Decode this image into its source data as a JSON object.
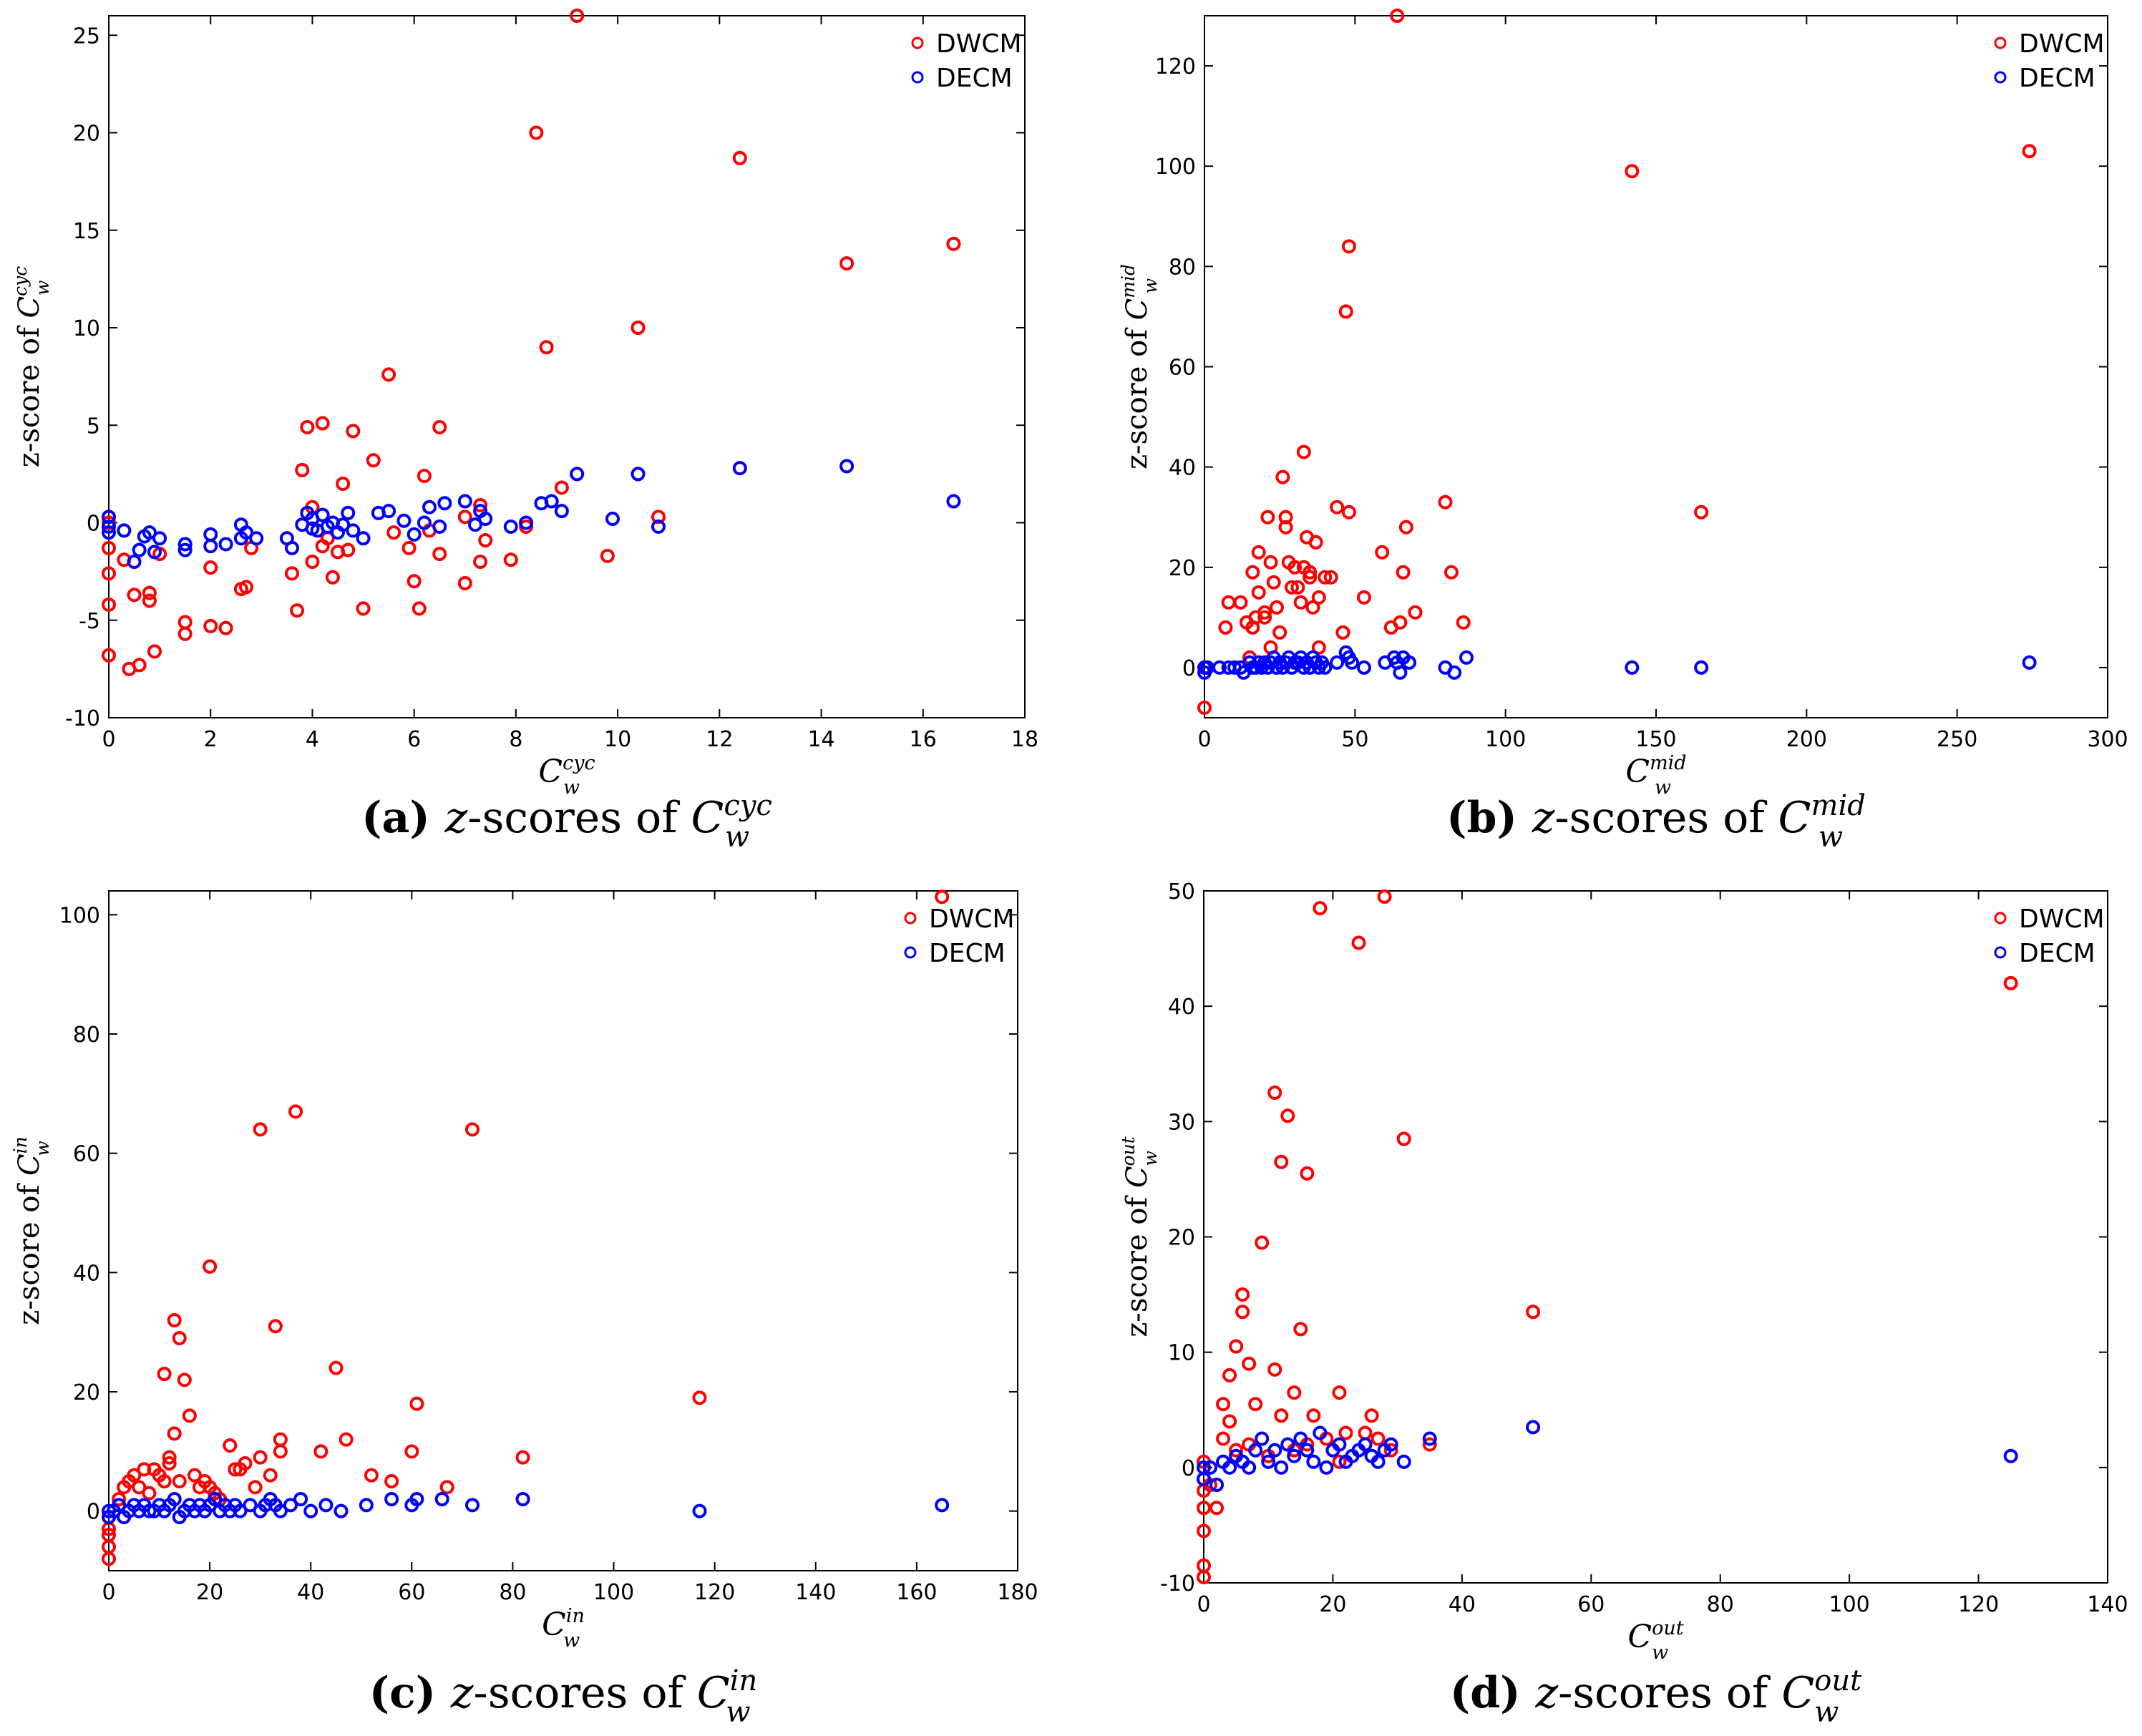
{
  "colors": {
    "dwcm": "#ff0000",
    "decm": "#0000ff"
  },
  "chart_data": [
    {
      "id": "a",
      "type": "scatter",
      "caption": {
        "letter": "(a)",
        "z": "z",
        "rest": "-scores of ",
        "var": "C",
        "sub": "w",
        "sup": "cyc"
      },
      "xlabel": {
        "var": "C",
        "sub": "w",
        "sup": "cyc"
      },
      "ylabel": {
        "text": "z-score of ",
        "var": "C",
        "sub": "w",
        "sup": "cyc"
      },
      "xlim": [
        0,
        18
      ],
      "ylim": [
        -10,
        26
      ],
      "xticks": [
        0,
        2,
        4,
        6,
        8,
        10,
        12,
        14,
        16,
        18
      ],
      "yticks": [
        -10,
        -5,
        0,
        5,
        10,
        15,
        20,
        25
      ],
      "legend": [
        "DWCM",
        "DECM"
      ],
      "series": [
        {
          "name": "DWCM",
          "x": [
            0,
            0,
            0,
            0,
            0,
            0.3,
            0.4,
            0.5,
            0.6,
            0.8,
            0.8,
            0.9,
            1.0,
            1.5,
            1.5,
            2.0,
            2.0,
            2.3,
            2.6,
            2.7,
            2.8,
            3.6,
            3.7,
            3.8,
            3.9,
            4.0,
            4.0,
            4.2,
            4.2,
            4.3,
            4.4,
            4.5,
            4.6,
            4.7,
            4.8,
            5.0,
            5.2,
            5.5,
            5.6,
            5.9,
            6.0,
            6.1,
            6.2,
            6.3,
            6.5,
            6.5,
            7.0,
            7.0,
            7.3,
            7.3,
            7.4,
            7.9,
            8.2,
            8.4,
            8.6,
            8.9,
            9.2,
            9.8,
            10.4,
            10.8,
            12.4,
            14.5,
            16.6
          ],
          "y": [
            -6.8,
            -4.2,
            -2.6,
            -1.3,
            0,
            -1.9,
            -7.5,
            -3.7,
            -7.3,
            -4.0,
            -3.6,
            -6.6,
            -1.6,
            -5.1,
            -5.7,
            -5.3,
            -2.3,
            -5.4,
            -3.4,
            -3.3,
            -1.3,
            -2.6,
            -4.5,
            2.7,
            4.9,
            0.8,
            -2.0,
            -1.2,
            5.1,
            -0.8,
            -2.8,
            -1.5,
            2.0,
            -1.4,
            4.7,
            -4.4,
            3.2,
            7.6,
            -0.5,
            -1.3,
            -3.0,
            -4.4,
            2.4,
            -0.4,
            4.9,
            -1.6,
            0.3,
            -3.1,
            0.9,
            -2.0,
            -0.9,
            -1.9,
            -0.2,
            20.0,
            9.0,
            1.8,
            26.0,
            -1.7,
            10.0,
            0.3,
            18.7,
            13.3,
            14.3
          ]
        },
        {
          "name": "DECM",
          "x": [
            0,
            0,
            0,
            0.3,
            0.5,
            0.6,
            0.7,
            0.8,
            0.9,
            1.0,
            1.5,
            1.5,
            2.0,
            2.0,
            2.3,
            2.6,
            2.6,
            2.7,
            2.9,
            3.5,
            3.6,
            3.8,
            3.9,
            4.0,
            4.0,
            4.1,
            4.2,
            4.3,
            4.4,
            4.5,
            4.6,
            4.7,
            4.8,
            5.0,
            5.3,
            5.5,
            5.8,
            6.0,
            6.2,
            6.3,
            6.5,
            6.6,
            7.0,
            7.2,
            7.3,
            7.4,
            7.9,
            8.2,
            8.5,
            8.7,
            8.9,
            9.2,
            9.9,
            10.4,
            10.8,
            12.4,
            14.5,
            16.6
          ],
          "y": [
            -0.2,
            -0.5,
            0.3,
            -0.4,
            -2.0,
            -1.4,
            -0.7,
            -0.5,
            -1.5,
            -0.8,
            -1.1,
            -1.4,
            -1.2,
            -0.6,
            -1.1,
            -0.8,
            -0.1,
            -0.5,
            -0.8,
            -0.8,
            -1.3,
            -0.1,
            0.5,
            -0.3,
            0.2,
            -0.4,
            0.4,
            -0.2,
            0.0,
            -0.5,
            -0.1,
            0.5,
            -0.4,
            -0.8,
            0.5,
            0.6,
            0.1,
            -0.6,
            0.0,
            0.8,
            -0.2,
            1.0,
            1.1,
            -0.1,
            0.6,
            0.2,
            -0.2,
            0.0,
            1.0,
            1.1,
            0.6,
            2.5,
            0.2,
            2.5,
            -0.2,
            2.8,
            2.9,
            1.1
          ]
        }
      ]
    },
    {
      "id": "b",
      "type": "scatter",
      "caption": {
        "letter": "(b)",
        "z": "z",
        "rest": "-scores of ",
        "var": "C",
        "sub": "w",
        "sup": "mid"
      },
      "xlabel": {
        "var": "C",
        "sub": "w",
        "sup": "mid"
      },
      "ylabel": {
        "text": "z-score of ",
        "var": "C",
        "sub": "w",
        "sup": "mid"
      },
      "xlim": [
        0,
        300
      ],
      "ylim": [
        -10,
        130
      ],
      "xticks": [
        0,
        50,
        100,
        150,
        200,
        250,
        300
      ],
      "yticks": [
        0,
        20,
        40,
        60,
        80,
        100,
        120
      ],
      "legend": [
        "DWCM",
        "DECM"
      ],
      "series": [
        {
          "name": "DWCM",
          "x": [
            0,
            7,
            8,
            12,
            14,
            15,
            16,
            16,
            17,
            18,
            18,
            20,
            20,
            21,
            22,
            22,
            23,
            24,
            25,
            26,
            27,
            27,
            28,
            29,
            30,
            31,
            32,
            33,
            33,
            34,
            35,
            35,
            36,
            37,
            38,
            38,
            40,
            42,
            44,
            46,
            47,
            48,
            48,
            53,
            59,
            62,
            64,
            65,
            66,
            67,
            70,
            80,
            82,
            86,
            142,
            165,
            274
          ],
          "y": [
            -8,
            8,
            13,
            13,
            9,
            2,
            19,
            8,
            10,
            23,
            15,
            10,
            11,
            30,
            21,
            4,
            17,
            12,
            7,
            38,
            30,
            28,
            21,
            16,
            20,
            16,
            13,
            43,
            20,
            26,
            18,
            19,
            12,
            25,
            14,
            4,
            18,
            18,
            32,
            7,
            71,
            84,
            31,
            14,
            23,
            8,
            130,
            9,
            19,
            28,
            11,
            33,
            19,
            9,
            99,
            31,
            103
          ]
        },
        {
          "name": "DECM",
          "x": [
            0,
            0,
            1,
            5,
            8,
            10,
            12,
            13,
            15,
            16,
            17,
            18,
            19,
            20,
            21,
            22,
            23,
            24,
            25,
            26,
            27,
            28,
            29,
            30,
            31,
            32,
            33,
            34,
            35,
            36,
            37,
            38,
            39,
            40,
            44,
            47,
            48,
            49,
            53,
            60,
            63,
            64,
            65,
            66,
            68,
            80,
            83,
            87,
            142,
            165,
            274
          ],
          "y": [
            0,
            -1,
            0,
            0,
            0,
            0,
            0,
            -1,
            1,
            0,
            0,
            1,
            0,
            1,
            0,
            1,
            2,
            0,
            1,
            0,
            1,
            2,
            0,
            1,
            1,
            2,
            0,
            1,
            0,
            2,
            1,
            0,
            1,
            0,
            1,
            3,
            2,
            1,
            0,
            1,
            2,
            1,
            -1,
            2,
            1,
            0,
            -1,
            2,
            0,
            0,
            1
          ]
        }
      ]
    },
    {
      "id": "c",
      "type": "scatter",
      "caption": {
        "letter": "(c)",
        "z": "z",
        "rest": "-scores of ",
        "var": "C",
        "sub": "w",
        "sup": "in"
      },
      "xlabel": {
        "var": "C",
        "sub": "w",
        "sup": "in"
      },
      "ylabel": {
        "text": "z-score of ",
        "var": "C",
        "sub": "w",
        "sup": "in"
      },
      "xlim": [
        0,
        180
      ],
      "ylim": [
        -10,
        104
      ],
      "xticks": [
        0,
        20,
        40,
        60,
        80,
        100,
        120,
        140,
        160,
        180
      ],
      "yticks": [
        0,
        20,
        40,
        60,
        80,
        100
      ],
      "legend": [
        "DWCM",
        "DECM"
      ],
      "series": [
        {
          "name": "DWCM",
          "x": [
            0,
            0,
            0,
            0,
            0,
            2,
            3,
            4,
            5,
            6,
            7,
            8,
            9,
            10,
            11,
            11,
            12,
            12,
            13,
            13,
            14,
            14,
            15,
            16,
            17,
            18,
            19,
            20,
            20,
            21,
            22,
            24,
            25,
            26,
            27,
            29,
            30,
            30,
            32,
            33,
            34,
            34,
            37,
            42,
            45,
            47,
            52,
            56,
            60,
            61,
            67,
            72,
            82,
            117,
            165
          ],
          "y": [
            -8,
            -6,
            -4,
            -3,
            -1,
            2,
            4,
            5,
            6,
            4,
            7,
            3,
            7,
            6,
            23,
            5,
            8,
            9,
            32,
            13,
            29,
            5,
            22,
            16,
            6,
            4,
            5,
            41,
            4,
            3,
            2,
            11,
            7,
            7,
            8,
            4,
            64,
            9,
            6,
            31,
            10,
            12,
            67,
            10,
            24,
            12,
            6,
            5,
            10,
            18,
            4,
            64,
            9,
            19,
            103
          ]
        },
        {
          "name": "DECM",
          "x": [
            0,
            0,
            1,
            2,
            3,
            4,
            5,
            6,
            7,
            8,
            9,
            10,
            11,
            12,
            13,
            14,
            15,
            16,
            17,
            18,
            19,
            20,
            21,
            22,
            23,
            24,
            25,
            26,
            28,
            30,
            31,
            32,
            33,
            34,
            36,
            38,
            40,
            43,
            46,
            51,
            56,
            60,
            61,
            66,
            72,
            82,
            117,
            165
          ],
          "y": [
            0,
            -1,
            0,
            1,
            -1,
            0,
            1,
            0,
            1,
            0,
            0,
            1,
            0,
            1,
            2,
            -1,
            0,
            1,
            0,
            1,
            0,
            1,
            2,
            0,
            1,
            0,
            1,
            0,
            1,
            0,
            1,
            2,
            1,
            0,
            1,
            2,
            0,
            1,
            0,
            1,
            2,
            1,
            2,
            2,
            1,
            2,
            0,
            1
          ]
        }
      ]
    },
    {
      "id": "d",
      "type": "scatter",
      "caption": {
        "letter": "(d)",
        "z": "z",
        "rest": "-scores of ",
        "var": "C",
        "sub": "w",
        "sup": "out"
      },
      "xlabel": {
        "var": "C",
        "sub": "w",
        "sup": "out"
      },
      "ylabel": {
        "text": "z-score of ",
        "var": "C",
        "sub": "w",
        "sup": "out"
      },
      "xlim": [
        0,
        140
      ],
      "ylim": [
        -10,
        50
      ],
      "xticks": [
        0,
        20,
        40,
        60,
        80,
        100,
        120,
        140
      ],
      "yticks": [
        -10,
        0,
        10,
        20,
        30,
        40,
        50
      ],
      "legend": [
        "DWCM",
        "DECM"
      ],
      "series": [
        {
          "name": "DWCM",
          "x": [
            0,
            0,
            0,
            0,
            0,
            0,
            0,
            1,
            2,
            3,
            3,
            4,
            4,
            5,
            5,
            6,
            6,
            7,
            7,
            8,
            9,
            10,
            11,
            11,
            12,
            12,
            13,
            14,
            14,
            15,
            16,
            16,
            17,
            18,
            19,
            20,
            21,
            21,
            22,
            24,
            25,
            26,
            27,
            28,
            29,
            31,
            35,
            51,
            125
          ],
          "y": [
            -9.5,
            -8.5,
            -5.5,
            -3.5,
            -2.0,
            -1.0,
            0.5,
            -1.5,
            -3.5,
            2.5,
            5.5,
            4.0,
            8.0,
            10.5,
            1.5,
            13.5,
            15.0,
            9.0,
            2.0,
            5.5,
            19.5,
            1.0,
            32.5,
            8.5,
            26.5,
            4.5,
            30.5,
            1.5,
            6.5,
            12.0,
            25.5,
            2.0,
            4.5,
            48.5,
            2.5,
            1.5,
            6.5,
            0.5,
            3.0,
            45.5,
            3.0,
            4.5,
            2.5,
            49.5,
            1.5,
            28.5,
            2.0,
            13.5,
            42.0
          ]
        },
        {
          "name": "DECM",
          "x": [
            0,
            0,
            1,
            2,
            3,
            4,
            5,
            6,
            7,
            8,
            9,
            10,
            11,
            12,
            13,
            14,
            15,
            16,
            17,
            18,
            19,
            20,
            21,
            22,
            23,
            24,
            25,
            26,
            27,
            28,
            29,
            31,
            35,
            51,
            125
          ],
          "y": [
            0.0,
            -1.0,
            0.0,
            -1.5,
            0.5,
            0.0,
            1.0,
            0.5,
            0.0,
            1.5,
            2.5,
            0.5,
            1.5,
            0.0,
            2.0,
            1.0,
            2.5,
            1.5,
            0.5,
            3.0,
            0.0,
            1.5,
            2.0,
            0.5,
            1.0,
            1.5,
            2.0,
            1.0,
            0.5,
            1.5,
            2.0,
            0.5,
            2.5,
            3.5,
            1.0
          ]
        }
      ]
    }
  ]
}
